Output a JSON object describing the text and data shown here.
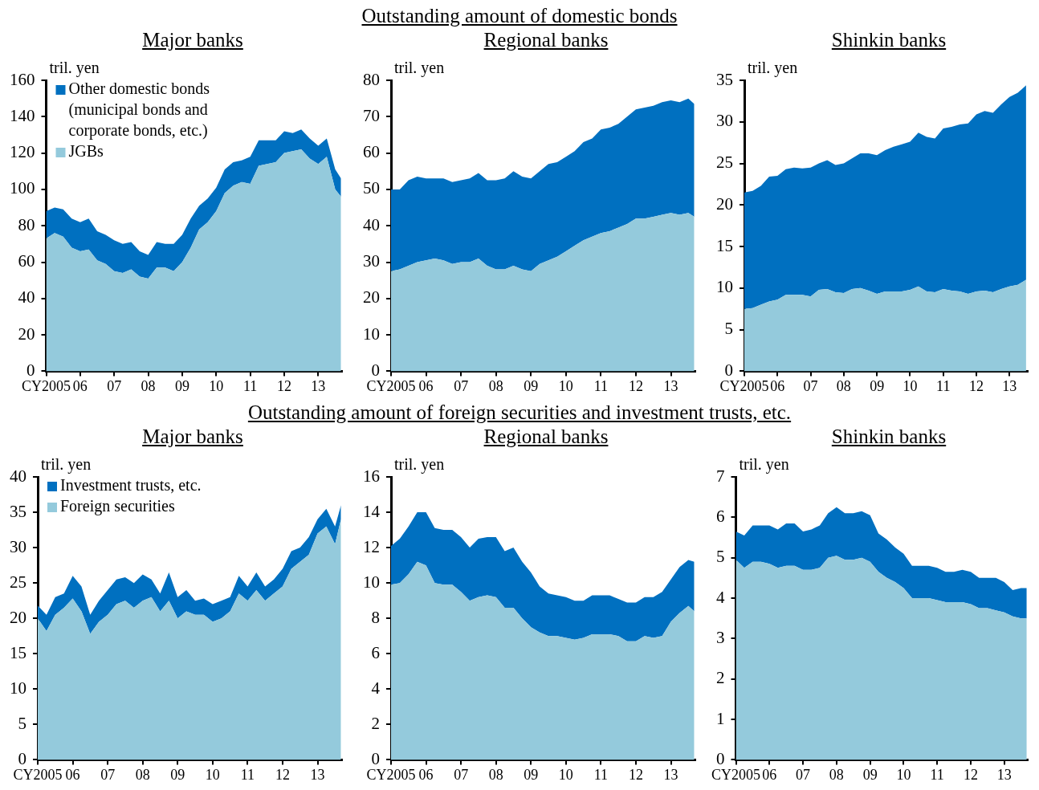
{
  "chart_data": [
    {
      "type": "area",
      "title": "Major banks",
      "ylabel": "tril. yen",
      "stacked": true,
      "legend": "top left",
      "x": [
        2005,
        2005.25,
        2005.5,
        2005.75,
        2006,
        2006.25,
        2006.5,
        2006.75,
        2007,
        2007.25,
        2007.5,
        2007.75,
        2008,
        2008.25,
        2008.5,
        2008.75,
        2009,
        2009.25,
        2009.5,
        2009.75,
        2010,
        2010.25,
        2010.5,
        2010.75,
        2011,
        2011.25,
        2011.5,
        2011.75,
        2012,
        2012.25,
        2012.5,
        2012.75,
        2013,
        2013.25,
        2013.5,
        2013.67
      ],
      "xlim": [
        2005,
        2013.7
      ],
      "xticks": [
        {
          "value": 2005,
          "label": "CY2005"
        },
        {
          "value": 2006,
          "label": "06"
        },
        {
          "value": 2007,
          "label": "07"
        },
        {
          "value": 2008,
          "label": "08"
        },
        {
          "value": 2009,
          "label": "09"
        },
        {
          "value": 2010,
          "label": "10"
        },
        {
          "value": 2011,
          "label": "11"
        },
        {
          "value": 2012,
          "label": "12"
        },
        {
          "value": 2013,
          "label": "13"
        }
      ],
      "ylim": [
        0,
        160
      ],
      "yticks": [
        0,
        20,
        40,
        60,
        80,
        100,
        120,
        140,
        160
      ],
      "series": [
        {
          "name": "JGBs",
          "color": "#94cadc",
          "values": [
            73,
            76,
            74,
            68,
            66,
            67,
            61,
            59,
            55,
            54,
            56,
            52,
            51,
            57,
            57,
            55,
            60,
            68,
            78,
            82,
            88,
            98,
            102,
            104,
            103,
            113,
            114,
            115,
            120,
            121,
            122,
            117,
            114,
            118,
            100,
            96
          ]
        },
        {
          "name": "Other domestic bonds\n(municipal bonds and\ncorporate bonds, etc.)",
          "color": "#0070c0",
          "values": [
            15,
            14,
            15,
            16,
            16,
            17,
            16,
            16,
            17,
            16,
            15,
            14,
            13,
            14,
            13,
            15,
            15,
            16,
            13,
            13,
            13,
            13,
            13,
            12,
            15,
            14,
            13,
            12,
            12,
            10,
            11,
            11,
            10,
            10,
            11,
            10
          ]
        }
      ]
    },
    {
      "type": "area",
      "subtitle": "Outstanding amount of domestic bonds",
      "title": "Regional banks",
      "ylabel": "tril. yen",
      "stacked": true,
      "x": [
        2005,
        2005.25,
        2005.5,
        2005.75,
        2006,
        2006.25,
        2006.5,
        2006.75,
        2007,
        2007.25,
        2007.5,
        2007.75,
        2008,
        2008.25,
        2008.5,
        2008.75,
        2009,
        2009.25,
        2009.5,
        2009.75,
        2010,
        2010.25,
        2010.5,
        2010.75,
        2011,
        2011.25,
        2011.5,
        2011.75,
        2012,
        2012.25,
        2012.5,
        2012.75,
        2013,
        2013.25,
        2013.5,
        2013.67
      ],
      "xlim": [
        2005,
        2013.7
      ],
      "xticks": [
        {
          "value": 2005,
          "label": "CY2005"
        },
        {
          "value": 2006,
          "label": "06"
        },
        {
          "value": 2007,
          "label": "07"
        },
        {
          "value": 2008,
          "label": "08"
        },
        {
          "value": 2009,
          "label": "09"
        },
        {
          "value": 2010,
          "label": "10"
        },
        {
          "value": 2011,
          "label": "11"
        },
        {
          "value": 2012,
          "label": "12"
        },
        {
          "value": 2013,
          "label": "13"
        }
      ],
      "ylim": [
        0,
        80
      ],
      "yticks": [
        0,
        10,
        20,
        30,
        40,
        50,
        60,
        70,
        80
      ],
      "series": [
        {
          "color": "#94cadc",
          "values": [
            27.5,
            28,
            29,
            30,
            30.5,
            31,
            30.5,
            29.5,
            30,
            30,
            31,
            29,
            28,
            28,
            29,
            28,
            27.5,
            29.5,
            30.5,
            31.5,
            33,
            34.5,
            36,
            37,
            38,
            38.5,
            39.5,
            40.5,
            42,
            42,
            42.5,
            43,
            43.5,
            43,
            43.5,
            42.5
          ]
        },
        {
          "color": "#0070c0",
          "values": [
            22.5,
            22,
            23.5,
            23.5,
            22.5,
            22,
            22.5,
            22.5,
            22.5,
            23,
            23.5,
            23.5,
            24.5,
            25,
            26,
            25.5,
            25.5,
            25.5,
            26.5,
            26,
            26,
            26,
            27,
            27,
            28.5,
            28.5,
            28.5,
            29.5,
            30,
            30.5,
            30.5,
            31,
            31,
            31,
            31.5,
            31
          ]
        }
      ]
    },
    {
      "type": "area",
      "title": "Shinkin banks",
      "ylabel": "tril. yen",
      "stacked": true,
      "x": [
        2005,
        2005.25,
        2005.5,
        2005.75,
        2006,
        2006.25,
        2006.5,
        2006.75,
        2007,
        2007.25,
        2007.5,
        2007.75,
        2008,
        2008.25,
        2008.5,
        2008.75,
        2009,
        2009.25,
        2009.5,
        2009.75,
        2010,
        2010.25,
        2010.5,
        2010.75,
        2011,
        2011.25,
        2011.5,
        2011.75,
        2012,
        2012.25,
        2012.5,
        2012.75,
        2013,
        2013.25,
        2013.5
      ],
      "xlim": [
        2005,
        2013.55
      ],
      "xticks": [
        {
          "value": 2005,
          "label": "CY2005"
        },
        {
          "value": 2006,
          "label": "06"
        },
        {
          "value": 2007,
          "label": "07"
        },
        {
          "value": 2008,
          "label": "08"
        },
        {
          "value": 2009,
          "label": "09"
        },
        {
          "value": 2010,
          "label": "10"
        },
        {
          "value": 2011,
          "label": "11"
        },
        {
          "value": 2012,
          "label": "12"
        },
        {
          "value": 2013,
          "label": "13"
        }
      ],
      "ylim": [
        0,
        35
      ],
      "yticks": [
        0,
        5,
        10,
        15,
        20,
        25,
        30,
        35
      ],
      "series": [
        {
          "color": "#94cadc",
          "values": [
            7.5,
            7.6,
            8.0,
            8.4,
            8.6,
            9.2,
            9.2,
            9.2,
            9.0,
            9.8,
            9.9,
            9.5,
            9.4,
            9.9,
            10.0,
            9.7,
            9.3,
            9.6,
            9.6,
            9.6,
            9.8,
            10.2,
            9.6,
            9.5,
            9.9,
            9.7,
            9.6,
            9.3,
            9.6,
            9.7,
            9.5,
            9.9,
            10.2,
            10.4,
            11.0
          ]
        },
        {
          "color": "#0070c0",
          "values": [
            14.0,
            14.1,
            14.3,
            15.0,
            14.9,
            15.1,
            15.3,
            15.2,
            15.5,
            15.2,
            15.5,
            15.3,
            15.6,
            15.7,
            16.2,
            16.5,
            16.7,
            17.0,
            17.4,
            17.7,
            17.8,
            18.5,
            18.6,
            18.5,
            19.3,
            19.7,
            20.1,
            20.5,
            21.3,
            21.6,
            21.6,
            22.2,
            22.8,
            23.1,
            23.4
          ]
        }
      ]
    },
    {
      "type": "area",
      "title": "Major banks",
      "ylabel": "tril. yen",
      "stacked": true,
      "legend": "top left",
      "x": [
        2005,
        2005.25,
        2005.5,
        2005.75,
        2006,
        2006.25,
        2006.5,
        2006.75,
        2007,
        2007.25,
        2007.5,
        2007.75,
        2008,
        2008.25,
        2008.5,
        2008.75,
        2009,
        2009.25,
        2009.5,
        2009.75,
        2010,
        2010.25,
        2010.5,
        2010.75,
        2011,
        2011.25,
        2011.5,
        2011.75,
        2012,
        2012.25,
        2012.5,
        2012.75,
        2013,
        2013.25,
        2013.5,
        2013.67
      ],
      "xlim": [
        2005,
        2013.7
      ],
      "xticks": [
        {
          "value": 2005,
          "label": "CY2005"
        },
        {
          "value": 2006,
          "label": "06"
        },
        {
          "value": 2007,
          "label": "07"
        },
        {
          "value": 2008,
          "label": "08"
        },
        {
          "value": 2009,
          "label": "09"
        },
        {
          "value": 2010,
          "label": "10"
        },
        {
          "value": 2011,
          "label": "11"
        },
        {
          "value": 2012,
          "label": "12"
        },
        {
          "value": 2013,
          "label": "13"
        }
      ],
      "ylim": [
        0,
        40
      ],
      "yticks": [
        0,
        5,
        10,
        15,
        20,
        25,
        30,
        35,
        40
      ],
      "series": [
        {
          "name": "Foreign securities",
          "color": "#94cadc",
          "values": [
            20.0,
            18.2,
            20.5,
            21.5,
            22.8,
            21.0,
            17.8,
            19.5,
            20.5,
            22.0,
            22.5,
            21.5,
            22.5,
            23.0,
            21.0,
            22.5,
            20.0,
            21.0,
            20.5,
            20.5,
            19.5,
            20.0,
            21.0,
            23.5,
            22.5,
            24.0,
            22.5,
            23.5,
            24.5,
            27.0,
            28.0,
            29.0,
            32.0,
            33.0,
            30.5,
            34.0
          ]
        },
        {
          "name": "Investment trusts, etc.",
          "color": "#0070c0",
          "values": [
            1.8,
            2.3,
            2.5,
            2.0,
            3.2,
            3.5,
            2.7,
            3.0,
            3.5,
            3.5,
            3.3,
            3.5,
            3.7,
            2.5,
            2.5,
            4.0,
            3.0,
            3.0,
            2.0,
            2.3,
            2.5,
            2.5,
            2.0,
            2.5,
            2.0,
            2.5,
            2.0,
            2.0,
            2.5,
            2.5,
            2.0,
            2.5,
            2.0,
            2.5,
            2.5,
            2.0
          ]
        }
      ]
    },
    {
      "type": "area",
      "subtitle": "Outstanding amount of foreign securities and investment trusts, etc.",
      "title": "Regional banks",
      "ylabel": "tril. yen",
      "stacked": true,
      "x": [
        2005,
        2005.25,
        2005.5,
        2005.75,
        2006,
        2006.25,
        2006.5,
        2006.75,
        2007,
        2007.25,
        2007.5,
        2007.75,
        2008,
        2008.25,
        2008.5,
        2008.75,
        2009,
        2009.25,
        2009.5,
        2009.75,
        2010,
        2010.25,
        2010.5,
        2010.75,
        2011,
        2011.25,
        2011.5,
        2011.75,
        2012,
        2012.25,
        2012.5,
        2012.75,
        2013,
        2013.25,
        2013.5,
        2013.67
      ],
      "xlim": [
        2005,
        2013.7
      ],
      "xticks": [
        {
          "value": 2005,
          "label": "CY2005"
        },
        {
          "value": 2006,
          "label": "06"
        },
        {
          "value": 2007,
          "label": "07"
        },
        {
          "value": 2008,
          "label": "08"
        },
        {
          "value": 2009,
          "label": "09"
        },
        {
          "value": 2010,
          "label": "10"
        },
        {
          "value": 2011,
          "label": "11"
        },
        {
          "value": 2012,
          "label": "12"
        },
        {
          "value": 2013,
          "label": "13"
        }
      ],
      "ylim": [
        0,
        16
      ],
      "yticks": [
        0,
        2,
        4,
        6,
        8,
        10,
        12,
        14,
        16
      ],
      "series": [
        {
          "color": "#94cadc",
          "values": [
            9.9,
            10.0,
            10.5,
            11.2,
            11.0,
            10.0,
            9.9,
            9.9,
            9.5,
            9.0,
            9.2,
            9.3,
            9.2,
            8.6,
            8.6,
            8.0,
            7.5,
            7.2,
            7.0,
            7.0,
            6.9,
            6.8,
            6.9,
            7.1,
            7.1,
            7.1,
            7.0,
            6.7,
            6.7,
            7.0,
            6.9,
            7.0,
            7.8,
            8.3,
            8.7,
            8.4
          ]
        },
        {
          "color": "#0070c0",
          "values": [
            2.2,
            2.5,
            2.7,
            2.8,
            3.0,
            3.1,
            3.1,
            3.1,
            3.1,
            3.0,
            3.3,
            3.3,
            3.4,
            3.2,
            3.4,
            3.2,
            3.1,
            2.6,
            2.4,
            2.3,
            2.3,
            2.2,
            2.1,
            2.2,
            2.2,
            2.2,
            2.1,
            2.2,
            2.2,
            2.2,
            2.3,
            2.5,
            2.4,
            2.6,
            2.6,
            2.8
          ]
        }
      ]
    },
    {
      "type": "area",
      "title": "Shinkin banks",
      "ylabel": "tril. yen",
      "stacked": true,
      "x": [
        2005,
        2005.25,
        2005.5,
        2005.75,
        2006,
        2006.25,
        2006.5,
        2006.75,
        2007,
        2007.25,
        2007.5,
        2007.75,
        2008,
        2008.25,
        2008.5,
        2008.75,
        2009,
        2009.25,
        2009.5,
        2009.75,
        2010,
        2010.25,
        2010.5,
        2010.75,
        2011,
        2011.25,
        2011.5,
        2011.75,
        2012,
        2012.25,
        2012.5,
        2012.75,
        2013,
        2013.25,
        2013.5,
        2013.67
      ],
      "xlim": [
        2005,
        2013.7
      ],
      "xticks": [
        {
          "value": 2005,
          "label": "CY2005"
        },
        {
          "value": 2006,
          "label": "06"
        },
        {
          "value": 2007,
          "label": "07"
        },
        {
          "value": 2008,
          "label": "08"
        },
        {
          "value": 2009,
          "label": "09"
        },
        {
          "value": 2010,
          "label": "10"
        },
        {
          "value": 2011,
          "label": "11"
        },
        {
          "value": 2012,
          "label": "12"
        },
        {
          "value": 2013,
          "label": "13"
        }
      ],
      "ylim": [
        0,
        7
      ],
      "yticks": [
        0,
        1,
        2,
        3,
        4,
        5,
        6,
        7
      ],
      "series": [
        {
          "color": "#94cadc",
          "values": [
            4.95,
            4.75,
            4.9,
            4.9,
            4.85,
            4.75,
            4.8,
            4.8,
            4.7,
            4.7,
            4.75,
            5.0,
            5.05,
            4.95,
            4.95,
            5.0,
            4.9,
            4.65,
            4.5,
            4.4,
            4.25,
            4.0,
            4.0,
            4.0,
            3.95,
            3.9,
            3.9,
            3.9,
            3.85,
            3.75,
            3.75,
            3.7,
            3.65,
            3.55,
            3.5,
            3.5
          ]
        },
        {
          "color": "#0070c0",
          "values": [
            0.7,
            0.8,
            0.9,
            0.9,
            0.95,
            0.95,
            1.05,
            1.05,
            0.95,
            1.0,
            1.05,
            1.1,
            1.2,
            1.15,
            1.15,
            1.15,
            1.15,
            0.95,
            0.95,
            0.85,
            0.85,
            0.8,
            0.8,
            0.8,
            0.8,
            0.75,
            0.75,
            0.8,
            0.8,
            0.75,
            0.75,
            0.8,
            0.75,
            0.65,
            0.75,
            0.75
          ]
        }
      ]
    }
  ]
}
